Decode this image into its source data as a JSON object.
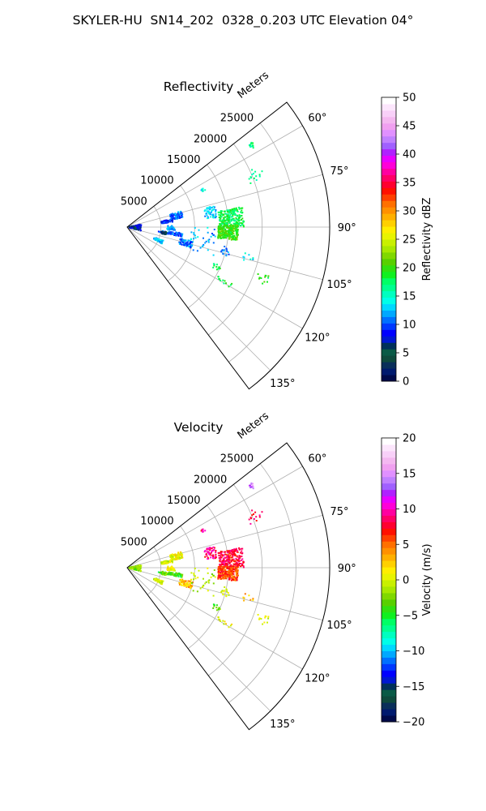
{
  "suptitle": "SKYLER-HU  SN14_202  0328_0.203 UTC Elevation 04°",
  "chart_data": [
    {
      "type": "heatmap",
      "projection": "polar",
      "title": "Reflectivity",
      "radial_label": "Meters",
      "radial_ticks": [
        "5000",
        "10000",
        "15000",
        "20000",
        "25000"
      ],
      "radial_tick_values": [
        5000,
        10000,
        15000,
        20000,
        25000
      ],
      "rlim": [
        0,
        30000
      ],
      "angle_ticks": [
        "60°",
        "75°",
        "90°",
        "105°",
        "120°",
        "135°"
      ],
      "angle_tick_values": [
        60,
        75,
        90,
        105,
        120,
        135
      ],
      "theta_range_deg": [
        52,
        143
      ],
      "grid": true,
      "colorbar": {
        "label": "Reflectivity dBZ",
        "min": 0,
        "max": 50,
        "ticks": [
          "0",
          "5",
          "10",
          "15",
          "20",
          "25",
          "30",
          "35",
          "40",
          "45",
          "50"
        ],
        "tick_values": [
          0,
          5,
          10,
          15,
          20,
          25,
          30,
          35,
          40,
          45,
          50
        ],
        "colors": [
          "#000a4a",
          "#001a6e",
          "#0a2f5a",
          "#0f4a3c",
          "#0a5a46",
          "#00305a",
          "#0018d0",
          "#0000ff",
          "#0038ff",
          "#0070ff",
          "#00a8ff",
          "#00d8ff",
          "#00ffe8",
          "#00ffc0",
          "#00ff90",
          "#00ff66",
          "#10f020",
          "#30e010",
          "#58d000",
          "#80d800",
          "#a8e800",
          "#c8f000",
          "#e8f400",
          "#ffee00",
          "#ffd000",
          "#ffb000",
          "#ff9000",
          "#ff7000",
          "#ff4000",
          "#ff1000",
          "#ff0030",
          "#ff0066",
          "#ff00a0",
          "#ff00d8",
          "#e800ff",
          "#b020ff",
          "#a060ff",
          "#c080ff",
          "#e090ff",
          "#f0a0f0",
          "#f4b8f0",
          "#f8d0f8",
          "#fce6fc",
          "#ffffff"
        ]
      },
      "echo_clusters": [
        {
          "range_m": 22000,
          "az_deg": 57,
          "spread_m": 400,
          "spread_deg": 1.2,
          "value": 17,
          "count": 14
        },
        {
          "range_m": 20500,
          "az_deg": 68,
          "spread_m": 1200,
          "spread_deg": 3,
          "value": 16,
          "count": 14
        },
        {
          "range_m": 12500,
          "az_deg": 64,
          "spread_m": 400,
          "spread_deg": 1,
          "value": 14,
          "count": 10
        },
        {
          "range_m": 7500,
          "az_deg": 77,
          "spread_m": 900,
          "spread_deg": 3.5,
          "value": 11,
          "count": 90
        },
        {
          "range_m": 6000,
          "az_deg": 82,
          "spread_m": 900,
          "spread_deg": 2,
          "value": 9,
          "count": 60
        },
        {
          "range_m": 12500,
          "az_deg": 80,
          "spread_m": 900,
          "spread_deg": 4,
          "value": 13,
          "count": 50
        },
        {
          "range_m": 15500,
          "az_deg": 85,
          "spread_m": 1800,
          "spread_deg": 5,
          "value": 18,
          "count": 210
        },
        {
          "range_m": 15000,
          "az_deg": 93,
          "spread_m": 1500,
          "spread_deg": 4,
          "value": 20,
          "count": 230
        },
        {
          "range_m": 6500,
          "az_deg": 91,
          "spread_m": 600,
          "spread_deg": 3,
          "value": 12,
          "count": 40
        },
        {
          "range_m": 6500,
          "az_deg": 98,
          "spread_m": 1800,
          "spread_deg": 2,
          "value": 10,
          "count": 70
        },
        {
          "range_m": 5500,
          "az_deg": 99,
          "spread_m": 400,
          "spread_deg": 2,
          "value": 3,
          "count": 30
        },
        {
          "range_m": 9000,
          "az_deg": 105,
          "spread_m": 1000,
          "spread_deg": 3,
          "value": 11,
          "count": 70
        },
        {
          "range_m": 5000,
          "az_deg": 113,
          "spread_m": 700,
          "spread_deg": 2.5,
          "value": 13,
          "count": 60
        },
        {
          "range_m": 1200,
          "az_deg": 92,
          "spread_m": 900,
          "spread_deg": 14,
          "value": 7,
          "count": 90
        },
        {
          "range_m": 11500,
          "az_deg": 100,
          "spread_m": 2000,
          "spread_deg": 10,
          "value": 12,
          "count": 35
        },
        {
          "range_m": 15000,
          "az_deg": 104,
          "spread_m": 600,
          "spread_deg": 3,
          "value": 11,
          "count": 15
        },
        {
          "range_m": 14500,
          "az_deg": 114,
          "spread_m": 600,
          "spread_deg": 1.5,
          "value": 18,
          "count": 12
        },
        {
          "range_m": 16500,
          "az_deg": 119,
          "spread_m": 1200,
          "spread_deg": 1.5,
          "value": 19,
          "count": 12
        },
        {
          "range_m": 21500,
          "az_deg": 111,
          "spread_m": 1000,
          "spread_deg": 2,
          "value": 19,
          "count": 12
        },
        {
          "range_m": 18500,
          "az_deg": 104,
          "spread_m": 800,
          "spread_deg": 2,
          "value": 14,
          "count": 8
        }
      ]
    },
    {
      "type": "heatmap",
      "projection": "polar",
      "title": "Velocity",
      "radial_label": "Meters",
      "radial_ticks": [
        "5000",
        "10000",
        "15000",
        "20000",
        "25000"
      ],
      "radial_tick_values": [
        5000,
        10000,
        15000,
        20000,
        25000
      ],
      "rlim": [
        0,
        30000
      ],
      "angle_ticks": [
        "60°",
        "75°",
        "90°",
        "105°",
        "120°",
        "135°"
      ],
      "angle_tick_values": [
        60,
        75,
        90,
        105,
        120,
        135
      ],
      "theta_range_deg": [
        52,
        143
      ],
      "grid": true,
      "colorbar": {
        "label": "Velocity (m/s)",
        "min": -20,
        "max": 20,
        "ticks": [
          "−20",
          "−15",
          "−10",
          "−5",
          "0",
          "5",
          "10",
          "15",
          "20"
        ],
        "tick_values": [
          -20,
          -15,
          -10,
          -5,
          0,
          5,
          10,
          15,
          20
        ],
        "colors": [
          "#000a4a",
          "#001a6e",
          "#0a2f5a",
          "#0f4a3c",
          "#0a5a46",
          "#00305a",
          "#0018d0",
          "#0000ff",
          "#0038ff",
          "#0070ff",
          "#00a8ff",
          "#00d8ff",
          "#00ffe8",
          "#00ffc0",
          "#00ff90",
          "#00ff66",
          "#10f020",
          "#30e010",
          "#58d000",
          "#80d800",
          "#a8e800",
          "#c8f000",
          "#e8f400",
          "#ffee00",
          "#ffd000",
          "#ffb000",
          "#ff9000",
          "#ff7000",
          "#ff4000",
          "#ff1000",
          "#ff0030",
          "#ff0066",
          "#ff00a0",
          "#ff00d8",
          "#e800ff",
          "#b020ff",
          "#a060ff",
          "#c080ff",
          "#e090ff",
          "#f0a0f0",
          "#f4b8f0",
          "#f8d0f8",
          "#fce6fc",
          "#ffffff"
        ]
      },
      "echo_clusters": [
        {
          "range_m": 22000,
          "az_deg": 57,
          "spread_m": 400,
          "spread_deg": 1.2,
          "value": 14,
          "count": 14
        },
        {
          "range_m": 20500,
          "az_deg": 68,
          "spread_m": 1200,
          "spread_deg": 3,
          "value": 8,
          "count": 14
        },
        {
          "range_m": 12500,
          "az_deg": 64,
          "spread_m": 400,
          "spread_deg": 1,
          "value": 9,
          "count": 10
        },
        {
          "range_m": 7500,
          "az_deg": 77,
          "spread_m": 900,
          "spread_deg": 3.5,
          "value": 1,
          "count": 90
        },
        {
          "range_m": 6000,
          "az_deg": 82,
          "spread_m": 900,
          "spread_deg": 2,
          "value": 0,
          "count": 60
        },
        {
          "range_m": 12500,
          "az_deg": 80,
          "spread_m": 900,
          "spread_deg": 4,
          "value": 9,
          "count": 50
        },
        {
          "range_m": 15500,
          "az_deg": 85,
          "spread_m": 1800,
          "spread_deg": 5,
          "value": 8,
          "count": 210
        },
        {
          "range_m": 15000,
          "az_deg": 93,
          "spread_m": 1500,
          "spread_deg": 4,
          "value": 6,
          "count": 230
        },
        {
          "range_m": 6500,
          "az_deg": 91,
          "spread_m": 600,
          "spread_deg": 3,
          "value": 1,
          "count": 40
        },
        {
          "range_m": 6500,
          "az_deg": 98,
          "spread_m": 1800,
          "spread_deg": 2,
          "value": -4,
          "count": 70
        },
        {
          "range_m": 5500,
          "az_deg": 99,
          "spread_m": 400,
          "spread_deg": 2,
          "value": -3,
          "count": 30
        },
        {
          "range_m": 9000,
          "az_deg": 105,
          "spread_m": 1000,
          "spread_deg": 3,
          "value": 3,
          "count": 70
        },
        {
          "range_m": 5000,
          "az_deg": 113,
          "spread_m": 700,
          "spread_deg": 2.5,
          "value": 0,
          "count": 60
        },
        {
          "range_m": 1200,
          "az_deg": 92,
          "spread_m": 900,
          "spread_deg": 14,
          "value": -2,
          "count": 90
        },
        {
          "range_m": 11500,
          "az_deg": 100,
          "spread_m": 2000,
          "spread_deg": 10,
          "value": -1,
          "count": 35
        },
        {
          "range_m": 15000,
          "az_deg": 104,
          "spread_m": 600,
          "spread_deg": 3,
          "value": 0,
          "count": 15
        },
        {
          "range_m": 14500,
          "az_deg": 114,
          "spread_m": 600,
          "spread_deg": 1.5,
          "value": -3,
          "count": 12
        },
        {
          "range_m": 16500,
          "az_deg": 119,
          "spread_m": 1200,
          "spread_deg": 1.5,
          "value": 1,
          "count": 12
        },
        {
          "range_m": 21500,
          "az_deg": 111,
          "spread_m": 1000,
          "spread_deg": 2,
          "value": 0,
          "count": 12
        },
        {
          "range_m": 18500,
          "az_deg": 104,
          "spread_m": 800,
          "spread_deg": 2,
          "value": 3,
          "count": 8
        }
      ]
    }
  ]
}
